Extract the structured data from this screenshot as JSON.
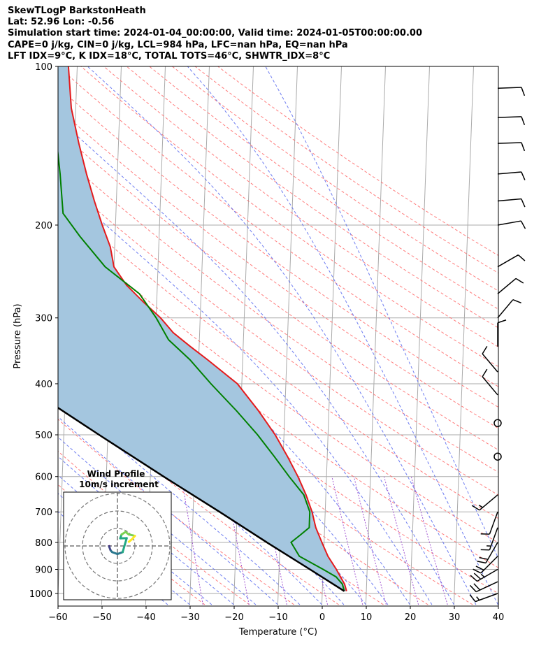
{
  "header": {
    "line1": "SkewTLogP BarkstonHeath",
    "line2": "Lat: 52.96   Lon: -0.56",
    "line3": "Simulation start time: 2024-01-04_00:00:00, Valid time: 2024-01-05T00:00:00.00",
    "line4": "CAPE=0 j/kg, CIN=0 j/kg, LCL=984 hPa, LFC=nan hPa, EQ=nan hPa",
    "line5": "LFT IDX=9°C, K IDX=18°C, TOTAL TOTS=46°C, SHWTR_IDX=8°C"
  },
  "colors": {
    "temperature": "#e41a1c",
    "dewpoint": "#008000",
    "parcel": "#000000",
    "cape_fill": "#a4c6df",
    "dry_adiabat": "#ff6666",
    "moist_adiabat": "#5566ee",
    "mixing_ratio": "#9944cc",
    "isotherm": "#aaaaaa",
    "isobar": "#aaaaaa",
    "barb": "#000000"
  },
  "chart_data": {
    "type": "skew-t log-p",
    "xlabel": "Temperature (°C)",
    "ylabel": "Pressure (hPa)",
    "xlim": [
      -60,
      40
    ],
    "ylim": [
      1050,
      100
    ],
    "yscale": "log",
    "x_ticks": [
      "−60",
      "−50",
      "−40",
      "−30",
      "−20",
      "−10",
      "0",
      "10",
      "20",
      "30",
      "40"
    ],
    "y_ticks": [
      "100",
      "200",
      "300",
      "400",
      "500",
      "600",
      "700",
      "800",
      "900",
      "1000"
    ],
    "y_tick_values": [
      100,
      200,
      300,
      400,
      500,
      600,
      700,
      800,
      900,
      1000
    ],
    "x_tick_values": [
      -60,
      -50,
      -40,
      -30,
      -20,
      -10,
      0,
      10,
      20,
      30,
      40
    ],
    "temperature_profile": {
      "pressure": [
        990,
        960,
        930,
        900,
        850,
        800,
        750,
        700,
        650,
        600,
        550,
        500,
        450,
        400,
        360,
        340,
        320,
        300,
        280,
        260,
        240,
        220,
        200,
        180,
        160,
        140,
        120,
        100
      ],
      "temperature": [
        5.5,
        5,
        4,
        3,
        1,
        -0.5,
        -2,
        -3,
        -4.5,
        -6.5,
        -9,
        -12,
        -16,
        -21,
        -28,
        -32,
        -36,
        -39,
        -43,
        -47,
        -50,
        -51,
        -53,
        -55,
        -57,
        -59,
        -61,
        -62
      ]
    },
    "dewpoint_profile": {
      "pressure": [
        990,
        960,
        930,
        900,
        850,
        800,
        775,
        750,
        700,
        650,
        600,
        550,
        500,
        450,
        400,
        360,
        330,
        300,
        270,
        240,
        210,
        190,
        160,
        140,
        120,
        100
      ],
      "dewpoint": [
        5,
        4.5,
        3,
        0,
        -5.5,
        -7.5,
        -5.5,
        -3.5,
        -3.5,
        -5,
        -8.5,
        -12,
        -16,
        -21,
        -27,
        -32,
        -37,
        -40,
        -44,
        -52,
        -58,
        -62,
        -63,
        -64,
        -67,
        -71
      ]
    },
    "parcel_profile": {
      "pressure": [
        990,
        900,
        800,
        700,
        600,
        500,
        400,
        300,
        200,
        150,
        100
      ],
      "temperature": [
        5,
        -3,
        -13,
        -24,
        -37,
        -52,
        -70,
        -93,
        -125,
        -148,
        -183
      ]
    },
    "wind_barbs": [
      {
        "pressure": 1000,
        "speed_kt": 15,
        "direction_deg": 250
      },
      {
        "pressure": 950,
        "speed_kt": 20,
        "direction_deg": 245
      },
      {
        "pressure": 900,
        "speed_kt": 25,
        "direction_deg": 240
      },
      {
        "pressure": 850,
        "speed_kt": 20,
        "direction_deg": 225
      },
      {
        "pressure": 800,
        "speed_kt": 20,
        "direction_deg": 210
      },
      {
        "pressure": 750,
        "speed_kt": 15,
        "direction_deg": 200
      },
      {
        "pressure": 700,
        "speed_kt": 10,
        "direction_deg": 200
      },
      {
        "pressure": 650,
        "speed_kt": 15,
        "direction_deg": 230
      },
      {
        "pressure": 550,
        "speed_kt": 0,
        "direction_deg": 0
      },
      {
        "pressure": 475,
        "speed_kt": 0,
        "direction_deg": 0
      },
      {
        "pressure": 420,
        "speed_kt": 10,
        "direction_deg": 320
      },
      {
        "pressure": 380,
        "speed_kt": 10,
        "direction_deg": 320
      },
      {
        "pressure": 340,
        "speed_kt": 10,
        "direction_deg": 360
      },
      {
        "pressure": 300,
        "speed_kt": 10,
        "direction_deg": 40
      },
      {
        "pressure": 270,
        "speed_kt": 10,
        "direction_deg": 50
      },
      {
        "pressure": 240,
        "speed_kt": 10,
        "direction_deg": 60
      },
      {
        "pressure": 200,
        "speed_kt": 10,
        "direction_deg": 80
      },
      {
        "pressure": 180,
        "speed_kt": 10,
        "direction_deg": 85
      },
      {
        "pressure": 160,
        "speed_kt": 10,
        "direction_deg": 85
      },
      {
        "pressure": 140,
        "speed_kt": 10,
        "direction_deg": 88
      },
      {
        "pressure": 125,
        "speed_kt": 10,
        "direction_deg": 88
      },
      {
        "pressure": 110,
        "speed_kt": 10,
        "direction_deg": 88
      }
    ],
    "inset": {
      "title": "Wind Profile",
      "subtitle": "10m/s increment",
      "type": "hodograph",
      "rings": 3
    }
  }
}
